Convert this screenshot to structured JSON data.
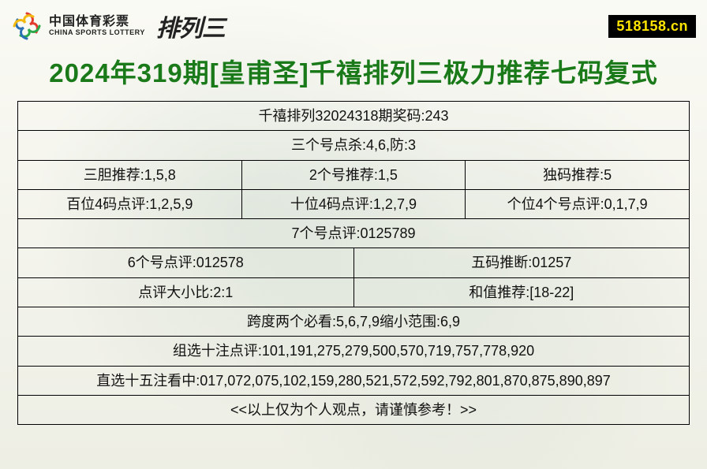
{
  "header": {
    "logo_cn": "中国体育彩票",
    "logo_en": "CHINA SPORTS LOTTERY",
    "logo_right": "排列三",
    "badge": "518158.cn",
    "logo_colors": {
      "swirl1": "#e23b2e",
      "swirl2": "#2aa84a",
      "swirl3": "#2b6fb5",
      "swirl4": "#f2b90f"
    }
  },
  "title": {
    "text": "2024年319期[皇甫圣]千禧排列三极力推荐七码复式",
    "color": "#1a7a1a",
    "fontsize": 33
  },
  "table": {
    "border_color": "#000000",
    "cell_fontsize": 18,
    "text_color": "#111111",
    "rows": [
      {
        "cells": [
          "千禧排列32024318期奖码:243"
        ],
        "spans": [
          3
        ]
      },
      {
        "cells": [
          "三个号点杀:4,6,防:3"
        ],
        "spans": [
          3
        ]
      },
      {
        "cells": [
          "三胆推荐:1,5,8",
          "2个号推荐:1,5",
          "独码推荐:5"
        ],
        "spans": [
          1,
          1,
          1
        ]
      },
      {
        "cells": [
          "百位4码点评:1,2,5,9",
          "十位4码点评:1,2,7,9",
          "个位4个号点评:0,1,7,9"
        ],
        "spans": [
          1,
          1,
          1
        ]
      },
      {
        "cells": [
          "7个号点评:0125789"
        ],
        "spans": [
          3
        ]
      },
      {
        "cells": [
          "6个号点评:012578",
          "五码推断:01257"
        ],
        "spans": [
          1,
          2
        ],
        "split": "1-2"
      },
      {
        "cells": [
          "点评大小比:2:1",
          "和值推荐:[18-22]"
        ],
        "spans": [
          1,
          2
        ],
        "split": "1-2"
      },
      {
        "cells": [
          "跨度两个必看:5,6,7,9缩小范围:6,9"
        ],
        "spans": [
          3
        ]
      },
      {
        "cells": [
          "组选十注点评:101,191,275,279,500,570,719,757,778,920"
        ],
        "spans": [
          3
        ]
      },
      {
        "cells": [
          "直选十五注看中:017,072,075,102,159,280,521,572,592,792,801,870,875,890,897"
        ],
        "spans": [
          3
        ]
      },
      {
        "cells": [
          "<<以上仅为个人观点，请谨慎参考！>>"
        ],
        "spans": [
          3
        ]
      }
    ]
  }
}
